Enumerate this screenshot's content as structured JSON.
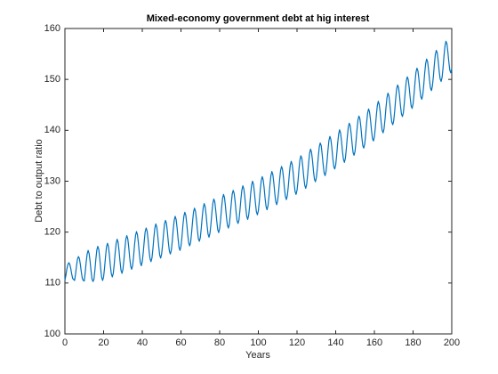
{
  "chart_data": {
    "type": "line",
    "title": "Mixed-economy government debt at hig interest",
    "xlabel": "Years",
    "ylabel": "Debt to output ratio",
    "color": "#0072bd",
    "xlim": [
      0,
      200
    ],
    "xticks": [
      0,
      20,
      40,
      60,
      80,
      100,
      120,
      140,
      160,
      180,
      200
    ],
    "ylim": [
      100,
      160
    ],
    "yticks": [
      100,
      110,
      120,
      130,
      140,
      150,
      160
    ],
    "x": [
      0,
      0.5,
      1,
      1.5,
      2,
      2.5,
      3,
      3.5,
      4,
      4.5,
      5,
      5.5,
      6,
      6.5,
      7,
      7.5,
      8,
      8.5,
      9,
      9.5,
      10,
      10.5,
      11,
      11.5,
      12,
      12.5,
      13,
      13.5,
      14,
      14.5,
      15,
      15.5,
      16,
      16.5,
      17,
      17.5,
      18,
      18.5,
      19,
      19.5,
      20,
      20.5,
      21,
      21.5,
      22,
      22.5,
      23,
      23.5,
      24,
      24.5,
      25,
      25.5,
      26,
      26.5,
      27,
      27.5,
      28,
      28.5,
      29,
      29.5,
      30,
      30.5,
      31,
      31.5,
      32,
      32.5,
      33,
      33.5,
      34,
      34.5,
      35,
      35.5,
      36,
      36.5,
      37,
      37.5,
      38,
      38.5,
      39,
      39.5,
      40,
      40.5,
      41,
      41.5,
      42,
      42.5,
      43,
      43.5,
      44,
      44.5,
      45,
      45.5,
      46,
      46.5,
      47,
      47.5,
      48,
      48.5,
      49,
      49.5,
      50,
      50.5,
      51,
      51.5,
      52,
      52.5,
      53,
      53.5,
      54,
      54.5,
      55,
      55.5,
      56,
      56.5,
      57,
      57.5,
      58,
      58.5,
      59,
      59.5,
      60,
      60.5,
      61,
      61.5,
      62,
      62.5,
      63,
      63.5,
      64,
      64.5,
      65,
      65.5,
      66,
      66.5,
      67,
      67.5,
      68,
      68.5,
      69,
      69.5,
      70,
      70.5,
      71,
      71.5,
      72,
      72.5,
      73,
      73.5,
      74,
      74.5,
      75,
      75.5,
      76,
      76.5,
      77,
      77.5,
      78,
      78.5,
      79,
      79.5,
      80,
      80.5,
      81,
      81.5,
      82,
      82.5,
      83,
      83.5,
      84,
      84.5,
      85,
      85.5,
      86,
      86.5,
      87,
      87.5,
      88,
      88.5,
      89,
      89.5,
      90,
      90.5,
      91,
      91.5,
      92,
      92.5,
      93,
      93.5,
      94,
      94.5,
      95,
      95.5,
      96,
      96.5,
      97,
      97.5,
      98,
      98.5,
      99,
      99.5,
      100,
      100.5,
      101,
      101.5,
      102,
      102.5,
      103,
      103.5,
      104,
      104.5,
      105,
      105.5,
      106,
      106.5,
      107,
      107.5,
      108,
      108.5,
      109,
      109.5,
      110,
      110.5,
      111,
      111.5,
      112,
      112.5,
      113,
      113.5,
      114,
      114.5,
      115,
      115.5,
      116,
      116.5,
      117,
      117.5,
      118,
      118.5,
      119,
      119.5,
      120,
      120.5,
      121,
      121.5,
      122,
      122.5,
      123,
      123.5,
      124,
      124.5,
      125,
      125.5,
      126,
      126.5,
      127,
      127.5,
      128,
      128.5,
      129,
      129.5,
      130,
      130.5,
      131,
      131.5,
      132,
      132.5,
      133,
      133.5,
      134,
      134.5,
      135,
      135.5,
      136,
      136.5,
      137,
      137.5,
      138,
      138.5,
      139,
      139.5,
      140,
      140.5,
      141,
      141.5,
      142,
      142.5,
      143,
      143.5,
      144,
      144.5,
      145,
      145.5,
      146,
      146.5,
      147,
      147.5,
      148,
      148.5,
      149,
      149.5,
      150,
      150.5,
      151,
      151.5,
      152,
      152.5,
      153,
      153.5,
      154,
      154.5,
      155,
      155.5,
      156,
      156.5,
      157,
      157.5,
      158,
      158.5,
      159,
      159.5,
      160,
      160.5,
      161,
      161.5,
      162,
      162.5,
      163,
      163.5,
      164,
      164.5,
      165,
      165.5,
      166,
      166.5,
      167,
      167.5,
      168,
      168.5,
      169,
      169.5,
      170,
      170.5,
      171,
      171.5,
      172,
      172.5,
      173,
      173.5,
      174,
      174.5,
      175,
      175.5,
      176,
      176.5,
      177,
      177.5,
      178,
      178.5,
      179,
      179.5,
      180,
      180.5,
      181,
      181.5,
      182,
      182.5,
      183,
      183.5,
      184,
      184.5,
      185,
      185.5,
      186,
      186.5,
      187,
      187.5,
      188,
      188.5,
      189,
      189.5,
      190,
      190.5,
      191,
      191.5,
      192,
      192.5,
      193,
      193.5,
      194,
      194.5,
      195,
      195.5,
      196,
      196.5,
      197,
      197.5,
      198,
      198.5,
      199,
      199.5,
      200
    ],
    "values": [
      110.5,
      111.5,
      112.7,
      113.6,
      114.0,
      113.7,
      112.9,
      111.8,
      110.9,
      110.7,
      110.5,
      111.8,
      113.4,
      114.7,
      115.2,
      114.8,
      113.6,
      112.1,
      110.9,
      110.5,
      110.4,
      112.1,
      114.1,
      115.7,
      116.4,
      115.8,
      114.3,
      112.4,
      110.8,
      110.3,
      110.7,
      112.5,
      114.7,
      116.5,
      117.2,
      116.6,
      114.9,
      112.8,
      111.1,
      110.5,
      111.2,
      113.0,
      115.2,
      117.1,
      117.8,
      117.2,
      115.5,
      113.4,
      111.8,
      111.2,
      111.9,
      113.7,
      116.0,
      117.8,
      118.6,
      118.0,
      116.3,
      114.2,
      112.5,
      111.9,
      112.7,
      114.5,
      116.7,
      118.6,
      119.3,
      118.7,
      117.0,
      114.9,
      113.3,
      112.7,
      113.4,
      115.2,
      117.5,
      119.3,
      120.1,
      119.5,
      117.8,
      115.7,
      114.0,
      113.4,
      114.2,
      116.0,
      118.2,
      120.1,
      120.8,
      120.2,
      118.5,
      116.4,
      114.8,
      114.2,
      114.9,
      116.7,
      119.0,
      120.8,
      121.6,
      121.0,
      119.3,
      117.2,
      115.5,
      114.9,
      115.7,
      117.5,
      119.7,
      121.6,
      122.3,
      121.7,
      120.0,
      117.9,
      116.3,
      115.7,
      116.4,
      118.2,
      120.5,
      122.3,
      123.1,
      122.5,
      120.8,
      118.7,
      117.0,
      116.4,
      117.2,
      119.0,
      121.3,
      123.1,
      123.9,
      123.3,
      121.6,
      119.5,
      117.9,
      117.3,
      118.0,
      119.9,
      122.1,
      124.0,
      124.7,
      124.1,
      122.5,
      120.4,
      118.7,
      118.2,
      118.9,
      120.8,
      123.0,
      124.8,
      125.6,
      125.0,
      123.4,
      121.3,
      119.6,
      119.0,
      119.8,
      121.6,
      123.9,
      125.7,
      126.5,
      125.9,
      124.2,
      122.2,
      120.5,
      119.9,
      120.7,
      122.5,
      124.8,
      126.6,
      127.4,
      126.8,
      125.1,
      123.0,
      121.4,
      120.8,
      121.5,
      123.4,
      125.6,
      127.5,
      128.2,
      127.6,
      126.0,
      123.9,
      122.2,
      121.7,
      122.4,
      124.3,
      126.5,
      128.3,
      129.1,
      128.5,
      126.9,
      124.8,
      123.1,
      122.5,
      123.3,
      125.1,
      127.4,
      129.2,
      130.0,
      129.4,
      127.7,
      125.7,
      124.0,
      123.4,
      124.2,
      126.0,
      128.3,
      130.1,
      130.9,
      130.3,
      128.7,
      126.6,
      125.0,
      124.4,
      125.2,
      127.0,
      129.3,
      131.1,
      131.9,
      131.3,
      129.7,
      127.6,
      126.0,
      125.4,
      126.2,
      128.0,
      130.3,
      132.1,
      132.9,
      132.3,
      130.7,
      128.6,
      127.0,
      126.4,
      127.2,
      129.0,
      131.3,
      133.1,
      133.9,
      133.3,
      131.7,
      129.6,
      128.0,
      127.4,
      128.2,
      130.0,
      132.3,
      134.2,
      135.0,
      134.5,
      132.8,
      130.8,
      129.2,
      128.6,
      129.4,
      131.3,
      133.6,
      135.5,
      136.3,
      135.7,
      134.1,
      132.0,
      130.4,
      129.9,
      130.7,
      132.5,
      134.8,
      136.7,
      137.5,
      137.0,
      135.3,
      133.3,
      131.7,
      131.1,
      131.9,
      133.8,
      136.1,
      138.0,
      138.8,
      138.2,
      136.6,
      134.5,
      132.9,
      132.4,
      133.2,
      135.1,
      137.4,
      139.2,
      140.1,
      139.5,
      137.9,
      135.9,
      134.3,
      133.7,
      134.5,
      136.4,
      138.7,
      140.6,
      141.4,
      140.9,
      139.3,
      137.3,
      135.6,
      135.1,
      135.9,
      137.8,
      140.1,
      142.0,
      142.8,
      142.3,
      140.7,
      138.6,
      137.0,
      136.5,
      137.3,
      139.2,
      141.5,
      143.4,
      144.2,
      143.6,
      142.0,
      140.0,
      138.4,
      137.9,
      138.7,
      140.6,
      142.9,
      144.8,
      145.7,
      145.1,
      143.6,
      141.6,
      140.0,
      139.5,
      140.3,
      142.2,
      144.5,
      146.4,
      147.3,
      146.8,
      145.2,
      143.2,
      141.6,
      141.1,
      141.9,
      143.8,
      146.2,
      148.1,
      148.9,
      148.4,
      146.8,
      144.8,
      143.2,
      142.7,
      143.5,
      145.5,
      147.8,
      149.7,
      150.5,
      150.0,
      148.4,
      146.4,
      144.8,
      144.3,
      145.2,
      147.1,
      149.4,
      151.4,
      152.2,
      151.7,
      150.1,
      148.1,
      146.6,
      146.1,
      146.9,
      148.8,
      151.2,
      153.1,
      154.0,
      153.5,
      151.9,
      149.9,
      148.3,
      147.8,
      148.7,
      150.6,
      152.9,
      154.9,
      155.7,
      155.2,
      153.6,
      151.6,
      150.1,
      149.6,
      150.4,
      152.3,
      154.7,
      156.6,
      157.5,
      157.0,
      155.4,
      153.4,
      151.8,
      151.3,
      152.2
    ]
  }
}
